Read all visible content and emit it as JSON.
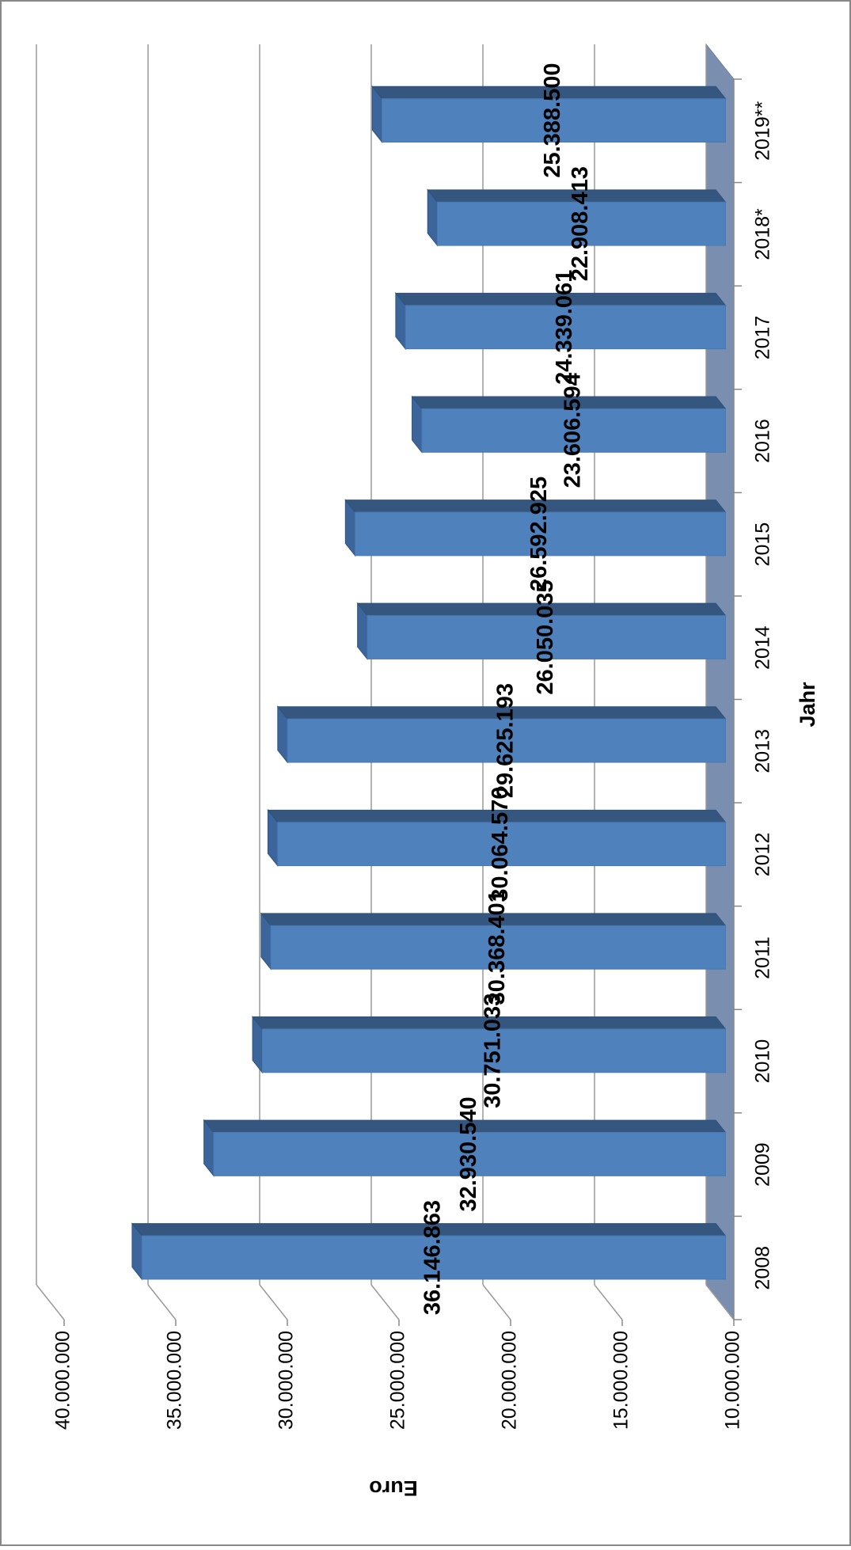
{
  "chart_data": {
    "type": "bar",
    "x_label": "Jahr",
    "y_label": "Euro",
    "categories": [
      "2008",
      "2009",
      "2010",
      "2011",
      "2012",
      "2013",
      "2014",
      "2015",
      "2016",
      "2017",
      "2018*",
      "2019**"
    ],
    "values": [
      36146863,
      32930540,
      30751033,
      30368401,
      30064570,
      29625193,
      26050035,
      26592925,
      23606594,
      24339061,
      22908413,
      25388500
    ],
    "value_labels": [
      "36.146.863",
      "32.930.540",
      "30.751.033",
      "30.368.401",
      "30.064.570",
      "29.625.193",
      "26.050.035",
      "26.592.925",
      "23.606.594",
      "24.339.061",
      "22.908.413",
      "25.388.500"
    ],
    "color": "#4f81bd",
    "ylim": [
      10000000,
      40000000
    ],
    "yticks": [
      {
        "value": 10000000,
        "label": "10.000.000"
      },
      {
        "value": 15000000,
        "label": "15.000.000"
      },
      {
        "value": 20000000,
        "label": "20.000.000"
      },
      {
        "value": 25000000,
        "label": "25.000.000"
      },
      {
        "value": 30000000,
        "label": "30.000.000"
      },
      {
        "value": 35000000,
        "label": "35.000.000"
      },
      {
        "value": 40000000,
        "label": "40.000.000"
      }
    ],
    "grid": true
  }
}
